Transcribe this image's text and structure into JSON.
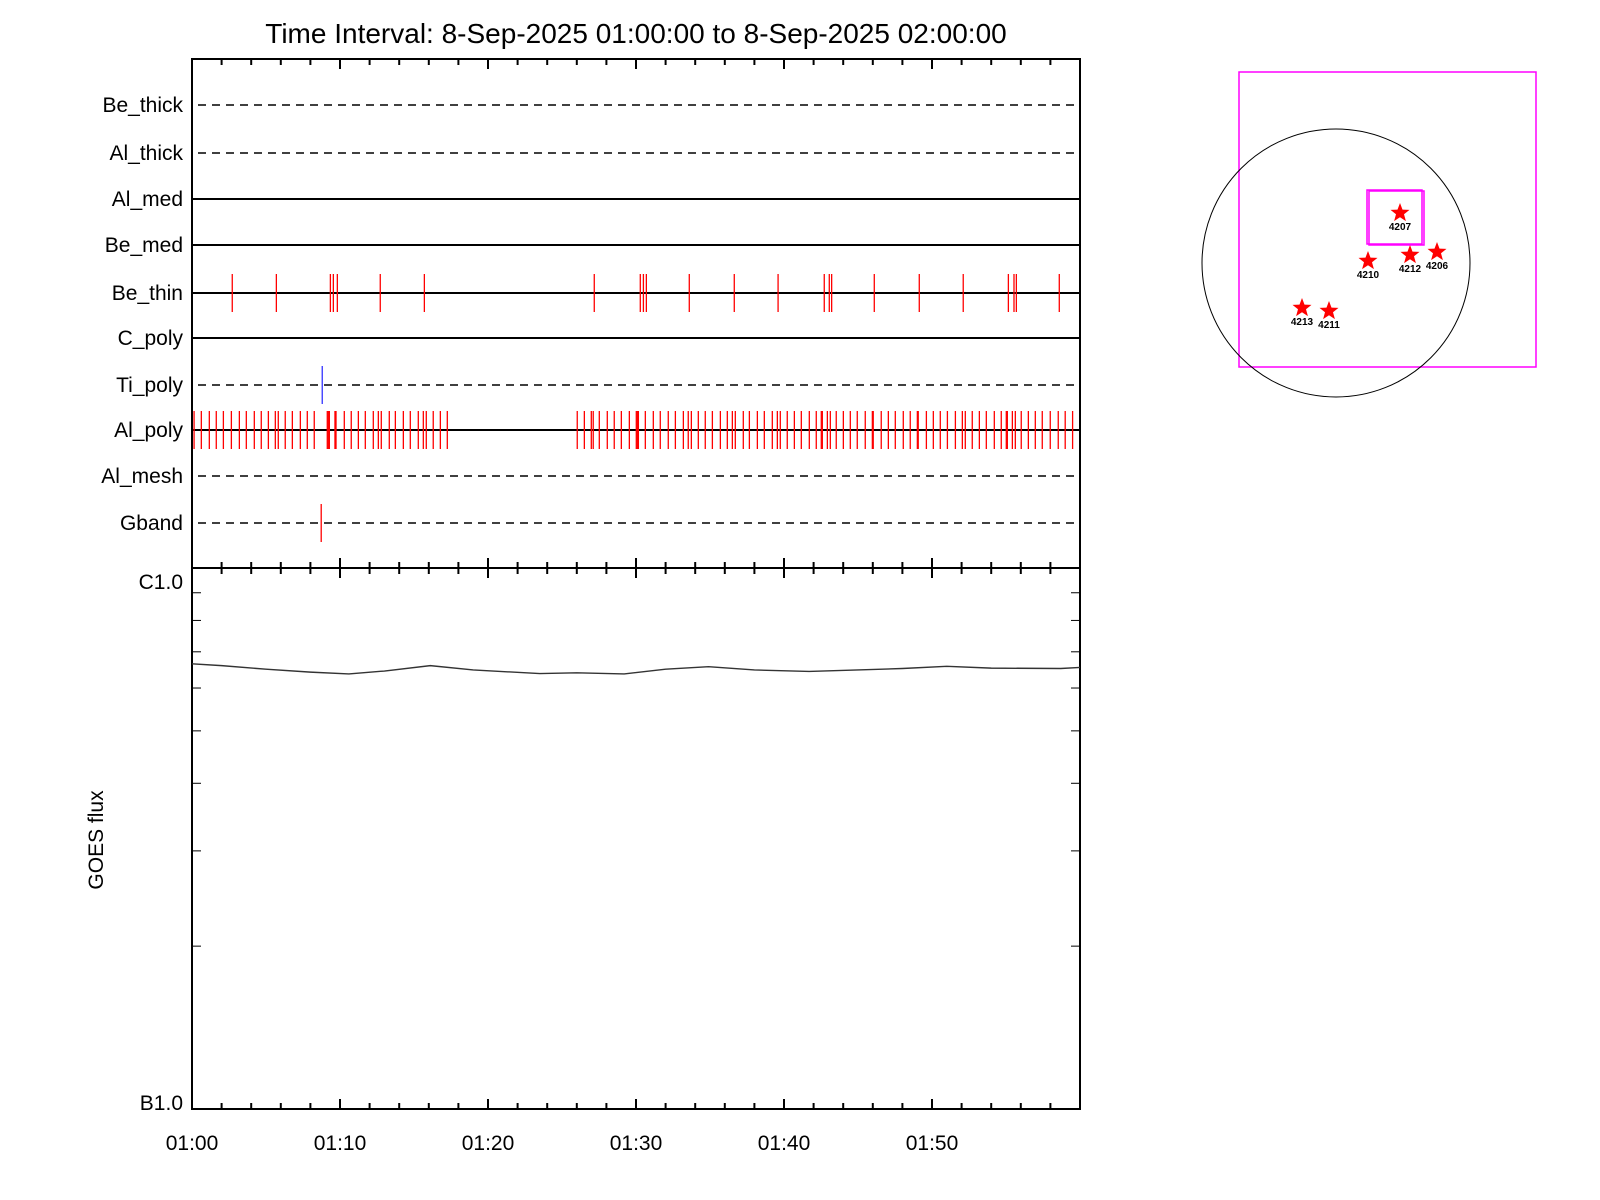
{
  "chart_data": [
    {
      "type": "event-timeline",
      "title": "Time Interval:  8-Sep-2025 01:00:00 to  8-Sep-2025 02:00:00",
      "x_unit": "minutes after 01:00",
      "xlim": [
        0,
        60
      ],
      "xticks": [
        "01:00",
        "01:10",
        "01:20",
        "01:30",
        "01:40",
        "01:50"
      ],
      "channels": [
        {
          "name": "Be_thick",
          "style": "dashed",
          "events": [],
          "color": "#ff0000"
        },
        {
          "name": "Al_thick",
          "style": "dashed",
          "events": [],
          "color": "#ff0000"
        },
        {
          "name": "Al_med",
          "style": "solid",
          "events": [],
          "color": "#ff0000"
        },
        {
          "name": "Be_med",
          "style": "solid",
          "events": [],
          "color": "#ff0000"
        },
        {
          "name": "Be_thin",
          "style": "solid",
          "color": "#ff0000",
          "events": [
            2.72,
            5.7,
            9.35,
            9.55,
            9.82,
            12.72,
            15.7,
            27.18,
            30.29,
            30.5,
            30.7,
            33.6,
            36.64,
            39.6,
            42.72,
            43.06,
            43.22,
            46.1,
            49.14,
            52.11,
            55.16,
            55.54,
            55.7,
            58.6
          ]
        },
        {
          "name": "C_poly",
          "style": "solid",
          "events": [],
          "color": "#ff0000"
        },
        {
          "name": "Ti_poly",
          "style": "dashed",
          "color": "#3333ff",
          "events": [
            8.8
          ]
        },
        {
          "name": "Al_poly",
          "style": "solid",
          "color": "#ff0000",
          "events": [
            0.14,
            0.63,
            1.17,
            1.64,
            2.12,
            2.66,
            3.2,
            3.67,
            4.21,
            4.68,
            5.16,
            5.63,
            5.83,
            6.3,
            6.78,
            7.32,
            7.79,
            8.26,
            9.14,
            9.21,
            9.28,
            9.66,
            9.73,
            10.29,
            10.76,
            11.24,
            11.71,
            12.25,
            12.59,
            12.79,
            13.33,
            13.74,
            14.28,
            14.75,
            15.29,
            15.63,
            15.83,
            16.3,
            16.78,
            17.25,
            26.03,
            26.51,
            26.98,
            27.11,
            27.52,
            28.06,
            28.53,
            29.01,
            29.55,
            30.02,
            30.09,
            30.16,
            30.63,
            31.17,
            31.64,
            32.18,
            32.66,
            33.2,
            33.53,
            33.74,
            34.21,
            34.68,
            35.16,
            35.7,
            36.17,
            36.51,
            36.71,
            37.25,
            37.66,
            38.2,
            38.67,
            39.21,
            39.55,
            39.75,
            40.22,
            40.7,
            41.17,
            41.71,
            42.18,
            42.52,
            42.59,
            42.93,
            43.13,
            43.53,
            44.01,
            44.48,
            44.95,
            45.49,
            45.97,
            46.03,
            46.57,
            47.05,
            47.52,
            48.06,
            48.53,
            49.01,
            49.07,
            49.62,
            50.09,
            50.56,
            51.04,
            51.58,
            52.05,
            52.25,
            52.72,
            53.2,
            53.67,
            54.21,
            54.68,
            55.02,
            55.09,
            55.43,
            55.63,
            56.03,
            56.51,
            56.98,
            57.45,
            57.99,
            58.53,
            59.0,
            59.5
          ]
        },
        {
          "name": "Al_mesh",
          "style": "dashed",
          "events": [],
          "color": "#ff0000"
        },
        {
          "name": "Gband",
          "style": "dashed",
          "color": "#ff0000",
          "events": [
            8.73
          ]
        }
      ]
    },
    {
      "type": "line",
      "ylabel": "GOES flux",
      "yscale": "log",
      "ylim": [
        1e-07,
        1e-06
      ],
      "ytick_labels": [
        "B1.0",
        "C1.0"
      ],
      "xlim": [
        0,
        60
      ],
      "xticks": [
        "01:00",
        "01:10",
        "01:20",
        "01:30",
        "01:40",
        "01:50"
      ],
      "x": [
        0,
        2,
        5,
        8,
        10.6,
        13,
        16.1,
        19,
        23.5,
        26,
        29.2,
        32,
        34.9,
        38,
        41.7,
        45,
        48,
        51,
        54,
        58.7,
        60
      ],
      "y": [
        6.65e-07,
        6.6e-07,
        6.5e-07,
        6.42e-07,
        6.37e-07,
        6.45e-07,
        6.6e-07,
        6.48e-07,
        6.38e-07,
        6.4e-07,
        6.37e-07,
        6.5e-07,
        6.57e-07,
        6.48e-07,
        6.44e-07,
        6.48e-07,
        6.52e-07,
        6.58e-07,
        6.53e-07,
        6.52e-07,
        6.55e-07
      ],
      "color": "#333333"
    },
    {
      "type": "scatter",
      "title": "",
      "points": [
        {
          "label": "4207",
          "x": 0.48,
          "y": 0.3
        },
        {
          "label": "4210",
          "x": 0.25,
          "y": 0.5
        },
        {
          "label": "4212",
          "x": 0.55,
          "y": 0.52
        },
        {
          "label": "4206",
          "x": 0.75,
          "y": 0.55
        },
        {
          "label": "4213",
          "x": -0.25,
          "y": 0.83
        },
        {
          "label": "4211",
          "x": -0.05,
          "y": 0.85
        }
      ],
      "marker": "star",
      "marker_color": "#ff0000",
      "box_color": "#ff00ff"
    }
  ]
}
